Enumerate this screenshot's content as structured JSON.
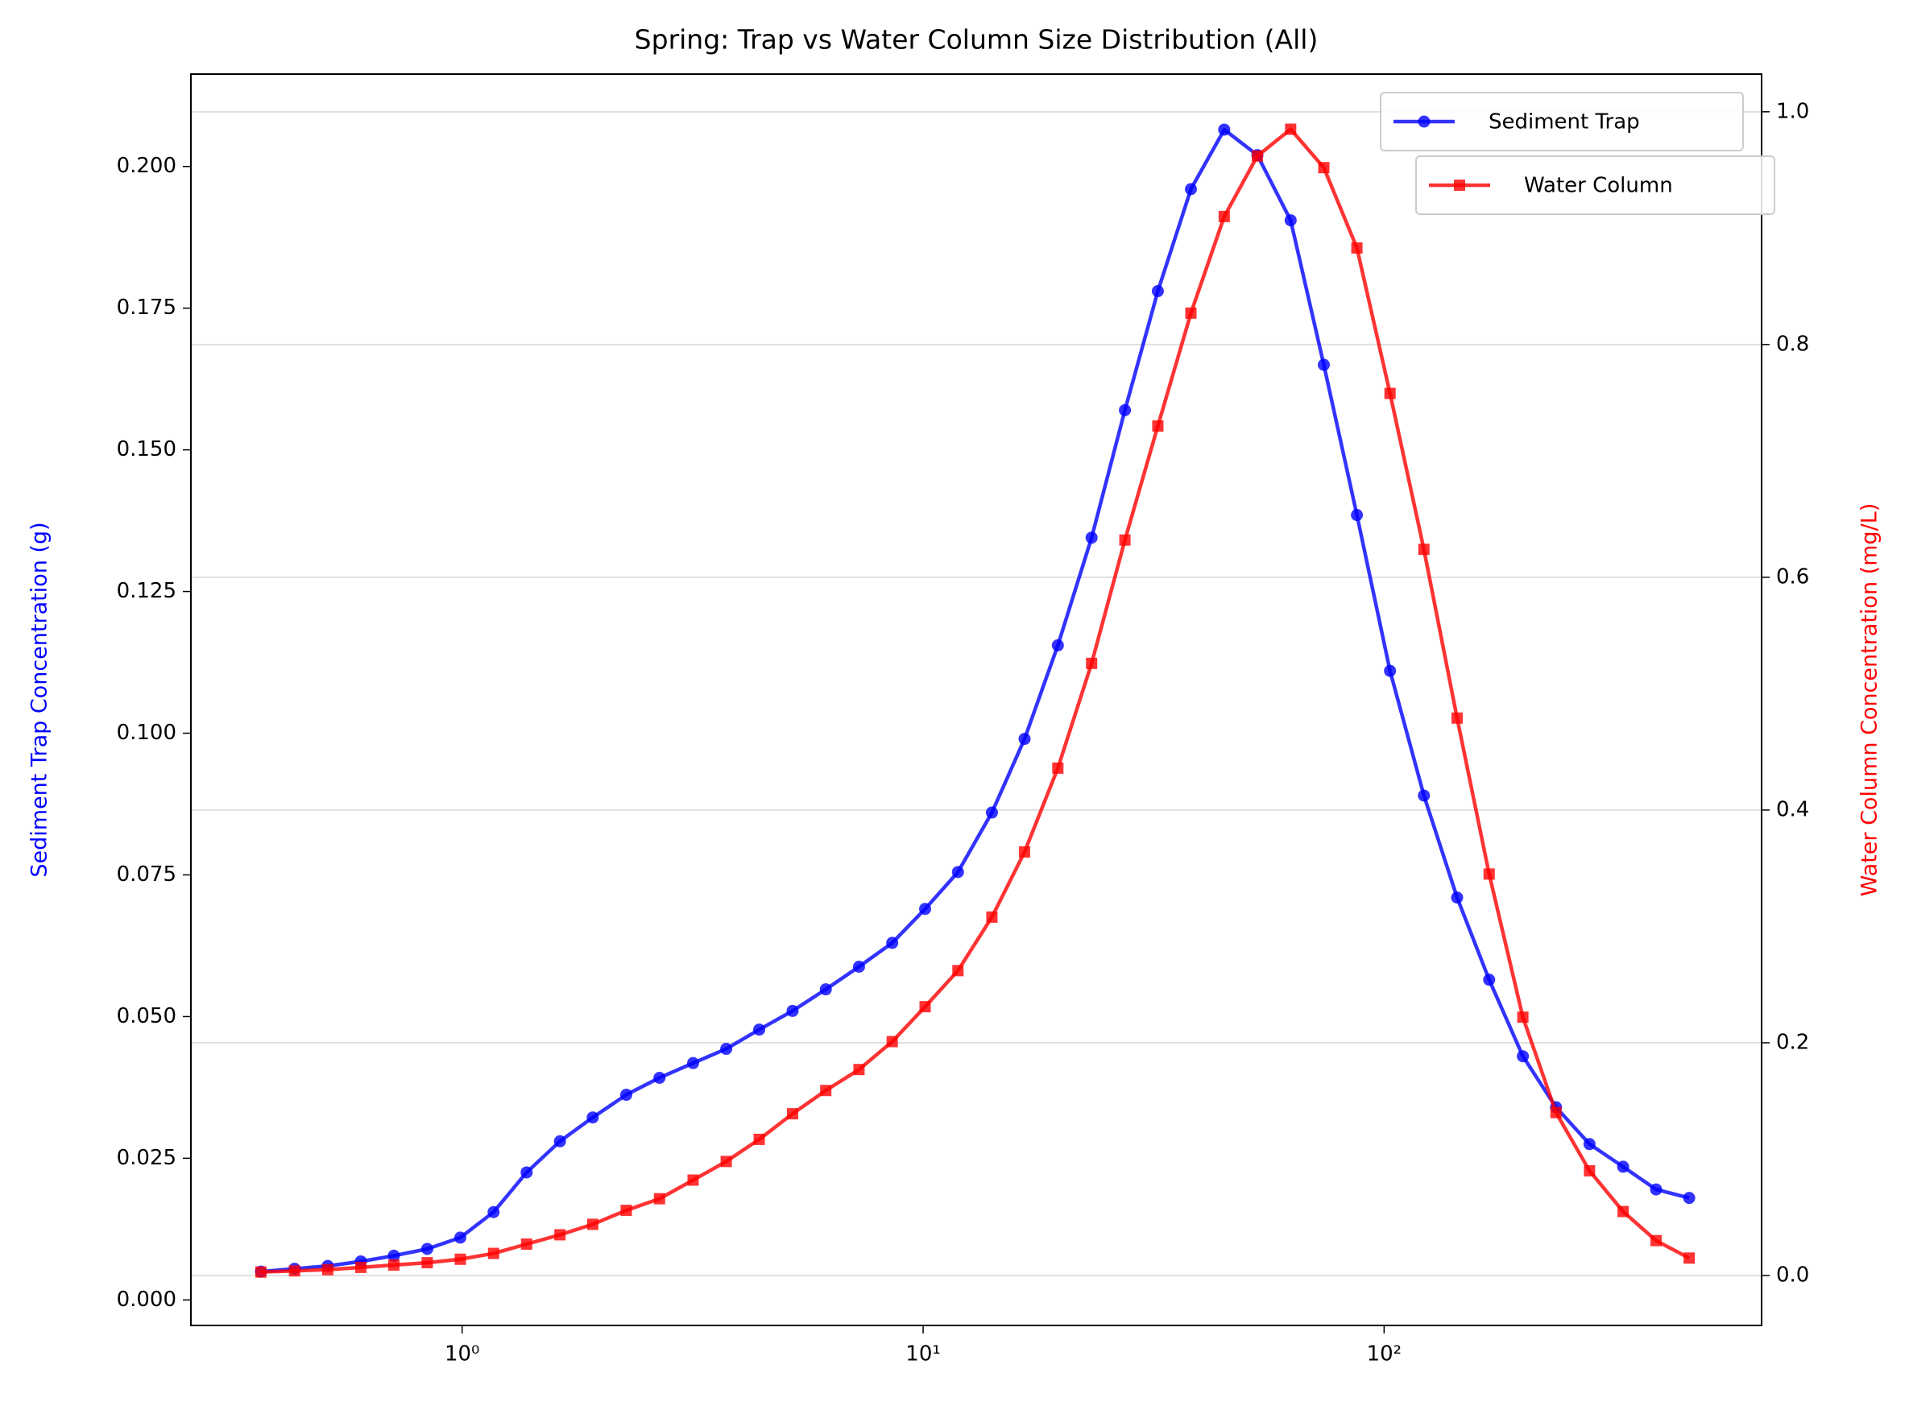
{
  "chart_data": {
    "type": "line",
    "title": "Spring: Trap vs Water Column Size Distribution (All)",
    "ylabel": "Sediment Trap Concentration (g)",
    "y2label": "Water Column Concentration (mg/L)",
    "xscale": "log",
    "x": [
      0.366,
      0.433,
      0.511,
      0.603,
      0.711,
      0.84,
      0.991,
      1.17,
      1.38,
      1.63,
      1.92,
      2.27,
      2.68,
      3.17,
      3.74,
      4.41,
      5.21,
      6.15,
      7.26,
      8.57,
      10.1,
      11.9,
      14.1,
      16.6,
      19.6,
      23.2,
      27.4,
      32.3,
      38.1,
      45.0,
      53.1,
      62.7,
      74.0,
      87.3,
      103,
      122,
      144,
      169,
      200,
      236,
      279,
      330,
      389,
      459
    ],
    "series": [
      {
        "name": "Sediment Trap",
        "color": "#0000ff",
        "marker": "o",
        "values": [
          0.005,
          0.0055,
          0.006,
          0.0068,
          0.0078,
          0.009,
          0.011,
          0.0155,
          0.0225,
          0.028,
          0.0322,
          0.0362,
          0.0392,
          0.0418,
          0.0443,
          0.0477,
          0.051,
          0.0548,
          0.0588,
          0.063,
          0.069,
          0.0755,
          0.086,
          0.099,
          0.1155,
          0.1345,
          0.157,
          0.178,
          0.196,
          0.2065,
          0.202,
          0.1905,
          0.165,
          0.1385,
          0.111,
          0.089,
          0.071,
          0.0565,
          0.043,
          0.034,
          0.0275,
          0.0235,
          0.0195,
          0.018
        ]
      },
      {
        "name": "Water Column",
        "color": "#ff0000",
        "marker": "s",
        "axis": "y2",
        "values": [
          0.003,
          0.004,
          0.005,
          0.007,
          0.009,
          0.011,
          0.014,
          0.019,
          0.027,
          0.035,
          0.044,
          0.056,
          0.066,
          0.082,
          0.098,
          0.117,
          0.139,
          0.159,
          0.177,
          0.201,
          0.231,
          0.262,
          0.308,
          0.364,
          0.436,
          0.526,
          0.632,
          0.73,
          0.827,
          0.91,
          0.962,
          0.985,
          0.952,
          0.883,
          0.758,
          0.624,
          0.479,
          0.345,
          0.222,
          0.14,
          0.09,
          0.055,
          0.03,
          0.015
        ]
      }
    ],
    "xlim": [
      0.258,
      659
    ],
    "xticks": [
      {
        "value": 1,
        "label": "10⁰"
      },
      {
        "value": 10,
        "label": "10¹"
      },
      {
        "value": 100,
        "label": "10²"
      }
    ],
    "ylim": [
      -0.0045,
      0.2163
    ],
    "yticks": [
      {
        "value": 0,
        "label": "0.000"
      },
      0.025,
      {
        "value": 0.05,
        "label": "0.050"
      },
      0.075,
      {
        "value": 0.1,
        "label": "0.100"
      },
      0.125,
      {
        "value": 0.15,
        "label": "0.150"
      },
      0.175,
      {
        "value": 0.2,
        "label": "0.200"
      }
    ],
    "y2lim": [
      -0.0429,
      1.0324
    ],
    "y2ticks": [
      {
        "value": 0,
        "label": "0.0"
      },
      0.2,
      0.4,
      0.6,
      0.8,
      {
        "value": 1,
        "label": "1.0"
      }
    ],
    "grid": true,
    "legend": "upper right"
  }
}
